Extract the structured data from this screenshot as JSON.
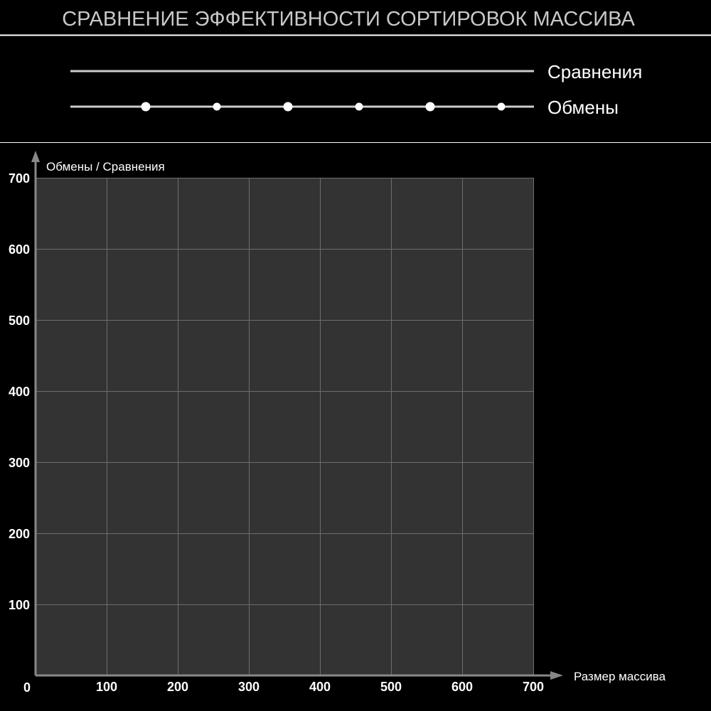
{
  "chart_data": {
    "type": "line",
    "title": "СРАВНЕНИЕ ЭФФЕКТИВНОСТИ СОРТИРОВОК МАССИВА",
    "xlabel": "Размер массива",
    "ylabel": "Обмены / Сравнения",
    "xlim": [
      0,
      700
    ],
    "ylim": [
      0,
      700
    ],
    "x_ticks": [
      "0",
      "100",
      "200",
      "300",
      "400",
      "500",
      "600",
      "700"
    ],
    "y_ticks": [
      "100",
      "200",
      "300",
      "400",
      "500",
      "600",
      "700"
    ],
    "grid": true,
    "legend_position": "top",
    "legend": [
      {
        "label": "Сравнения",
        "marker": "none"
      },
      {
        "label": "Обмены",
        "marker": "circle"
      }
    ],
    "series": [
      {
        "name": "Сравнения",
        "x": [],
        "y": []
      },
      {
        "name": "Обмены",
        "x": [],
        "y": []
      }
    ],
    "colors": {
      "background": "#000000",
      "plot_area": "#333333",
      "grid": "#6e6e6e",
      "axis": "#888888",
      "line": "#cccccc",
      "marker": "#ffffff"
    }
  }
}
